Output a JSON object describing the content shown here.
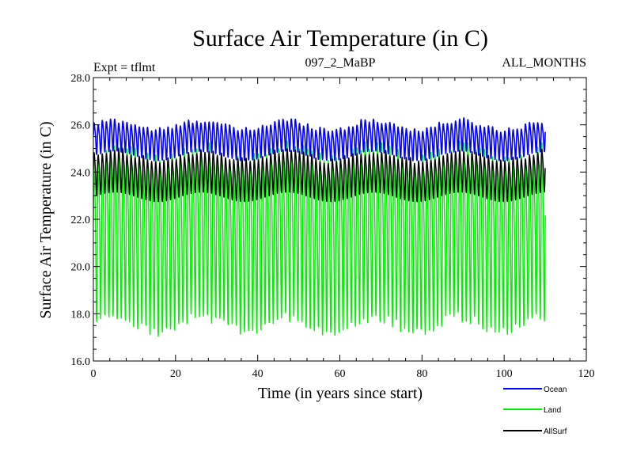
{
  "chart_data": {
    "type": "line",
    "title": "Surface Air Temperature (in C)",
    "subtitle_left": "Expt = tflmt",
    "subtitle_center": "097_2_MaBP",
    "subtitle_right": "ALL_MONTHS",
    "xlabel": "Time (in years since start)",
    "ylabel": "Surface Air Temperature (in C)",
    "xlim": [
      0,
      120
    ],
    "ylim": [
      16.0,
      28.0
    ],
    "xticks": [
      0,
      20,
      40,
      60,
      80,
      100,
      120
    ],
    "yticks": [
      "16.0",
      "18.0",
      "20.0",
      "22.0",
      "24.0",
      "26.0",
      "28.0"
    ],
    "x_range": [
      0,
      110
    ],
    "cycles_per_year": 1,
    "series": [
      {
        "name": "Ocean",
        "color": "#0000ff",
        "mean": 25.4,
        "amplitude": 0.6,
        "drift_amp": 0.2
      },
      {
        "name": "Land",
        "color": "#00ee00",
        "mean": 21.5,
        "amplitude": 3.3,
        "drift_amp": 0.3
      },
      {
        "name": "AllSurf",
        "color": "#000000",
        "mean": 23.9,
        "amplitude": 0.8,
        "drift_amp": 0.2
      }
    ],
    "legend": [
      "Ocean",
      "Land",
      "AllSurf"
    ]
  }
}
